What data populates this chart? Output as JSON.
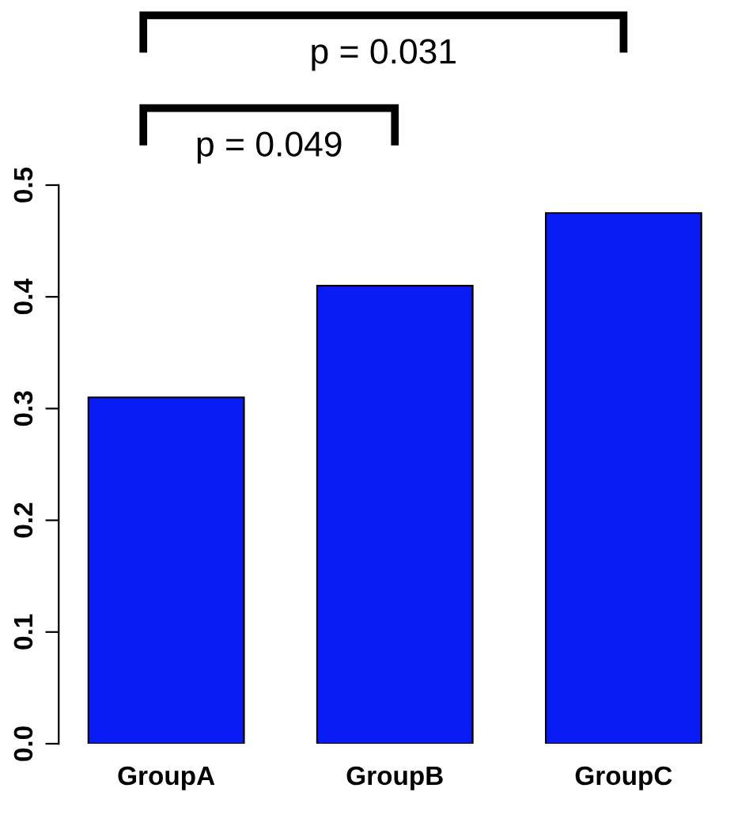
{
  "chart_data": {
    "type": "bar",
    "categories": [
      "GroupA",
      "GroupB",
      "GroupC"
    ],
    "values": [
      0.31,
      0.41,
      0.475
    ],
    "color": "#0a1cf5",
    "ylim": [
      0,
      0.5
    ],
    "yticks": [
      {
        "value": 0,
        "label": "0.0"
      },
      {
        "value": 0.1,
        "label": "0.1"
      },
      {
        "value": 0.2,
        "label": "0.2"
      },
      {
        "value": 0.3,
        "label": "0.3"
      },
      {
        "value": 0.4,
        "label": "0.4"
      },
      {
        "value": 0.5,
        "label": "0.5"
      }
    ],
    "grid": false,
    "annotations": [
      "p = 0.049",
      "p = 0.031"
    ]
  }
}
